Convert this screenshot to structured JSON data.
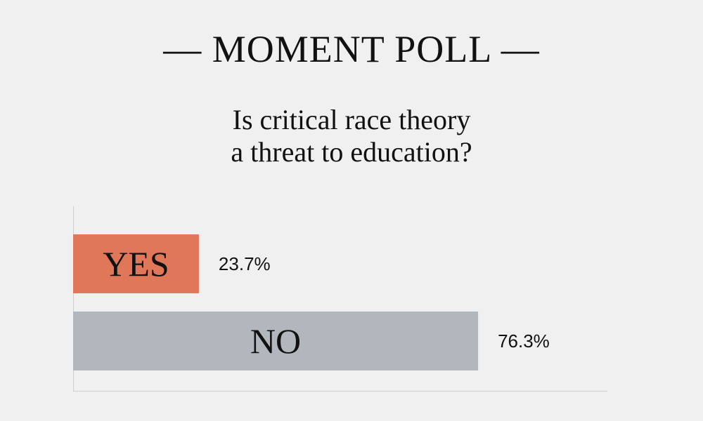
{
  "header": {
    "title": "— MOMENT POLL —",
    "question_line1": "Is critical race theory",
    "question_line2": "a threat to education?"
  },
  "chart_data": {
    "type": "bar",
    "orientation": "horizontal",
    "categories": [
      "YES",
      "NO"
    ],
    "values": [
      23.7,
      76.3
    ],
    "value_labels": [
      "23.7%",
      "76.3%"
    ],
    "colors": [
      "#e07759",
      "#b1b7bd"
    ],
    "xlim": [
      0,
      100
    ],
    "grid": false,
    "legend": "none"
  }
}
